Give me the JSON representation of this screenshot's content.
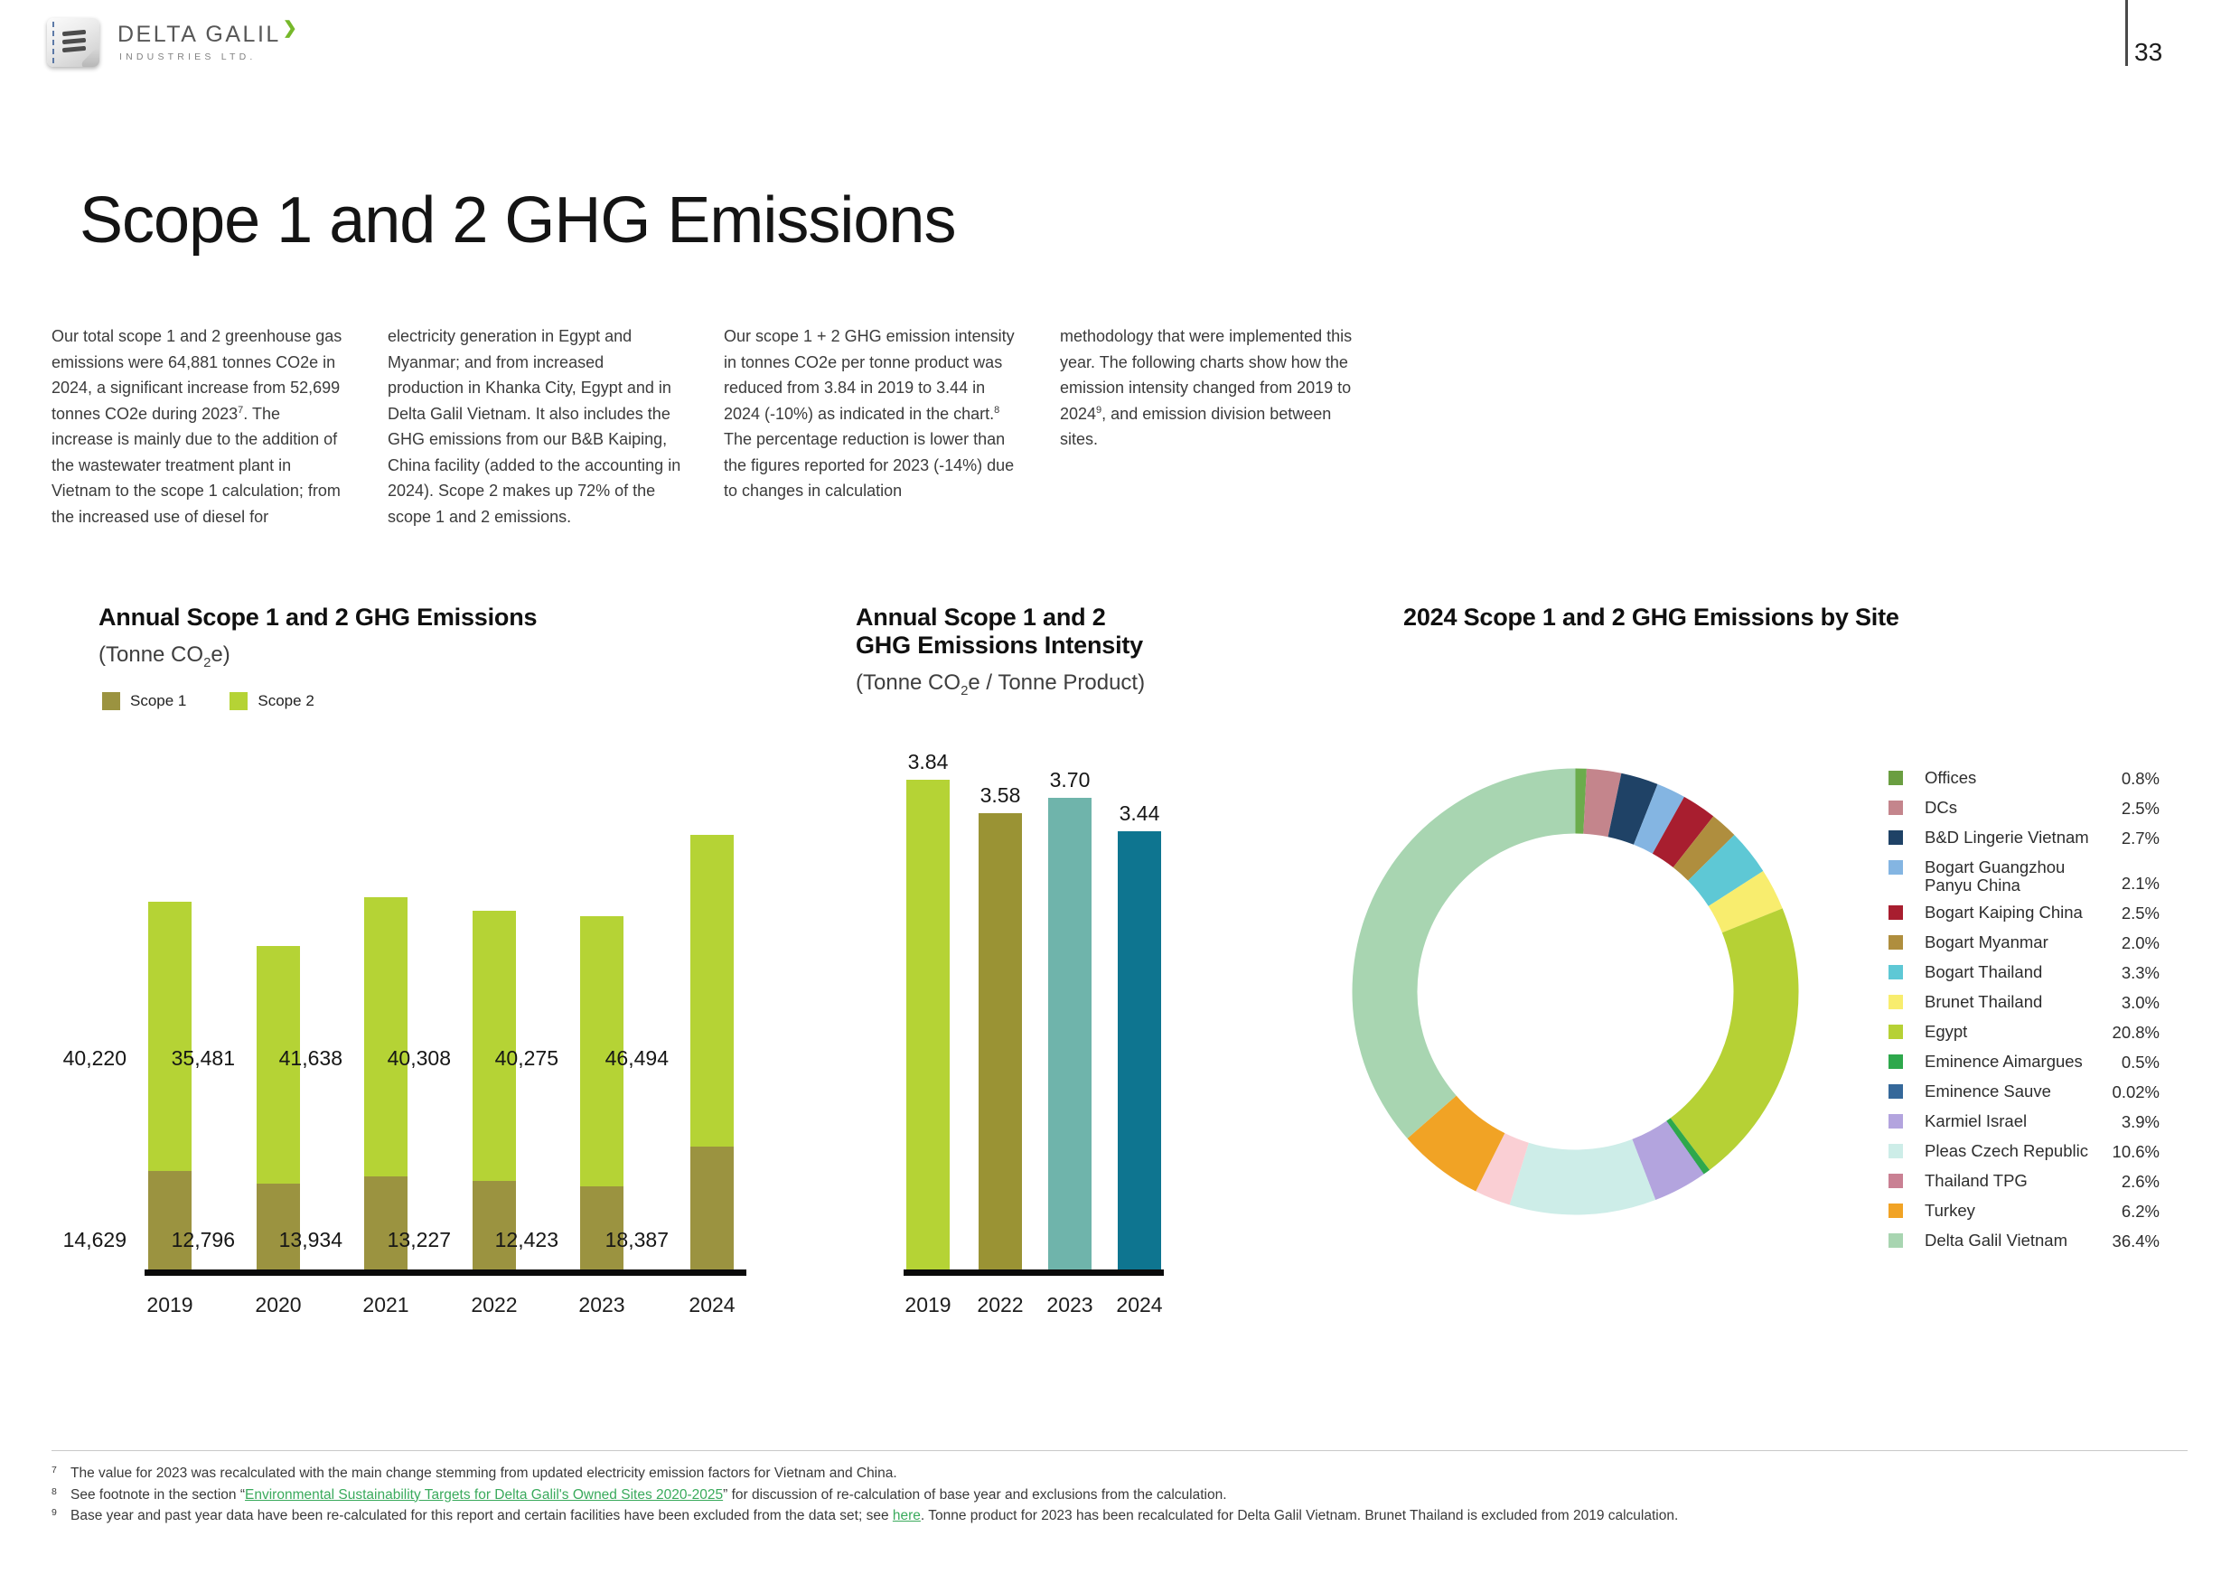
{
  "page_number": "33",
  "logo": {
    "brand": "DELTA GALIL",
    "subtitle": "INDUSTRIES LTD.",
    "arrow_color": "#76B82A"
  },
  "title": "Scope 1 and 2 GHG Emissions",
  "link_color": "#3AAA5C",
  "intro": {
    "columns": [
      [
        {
          "t": "Our total scope 1 and 2 greenhouse gas emissions were 64,881 tonnes CO2e in 2024, a significant increase from 52,699 tonnes CO2e during 2023"
        },
        {
          "t": "7",
          "sup": true
        },
        {
          "t": ". The increase is mainly due to the addition of the wastewater treatment plant in Vietnam to the scope 1 calculation; from the increased use of diesel for"
        }
      ],
      [
        {
          "t": "electricity generation in Egypt and Myanmar; and from increased production in Khanka City, Egypt and in Delta Galil Vietnam. It also includes the GHG emissions from our B&B Kaiping, China facility (added to the accounting in 2024). Scope 2 makes up 72% of the scope 1 and 2 emissions."
        }
      ],
      [
        {
          "t": "Our scope 1 + 2 GHG emission intensity in tonnes CO2e per tonne product was reduced from 3.84 in 2019 to 3.44 in 2024 (-10%) as indicated in the chart."
        },
        {
          "t": "8",
          "sup": true
        },
        {
          "t": " The percentage reduction is lower than the figures reported for 2023 (-14%) due to changes in calculation"
        }
      ],
      [
        {
          "t": "methodology that were implemented this year. The following charts show how the emission intensity changed from 2019 to 2024"
        },
        {
          "t": "9",
          "sup": true
        },
        {
          "t": ", and emission division between sites."
        }
      ]
    ]
  },
  "chart_data": [
    {
      "id": "annual_emissions",
      "type": "bar",
      "stacked": true,
      "title": "Annual Scope 1 and 2 GHG Emissions",
      "unit": {
        "pre": "(Tonne CO",
        "sub": "2",
        "post": "e)"
      },
      "categories": [
        "2019",
        "2020",
        "2021",
        "2022",
        "2023",
        "2024"
      ],
      "series": [
        {
          "name": "Scope 1",
          "color": "#9B9340",
          "values": [
            14629,
            12796,
            13934,
            13227,
            12423,
            18387
          ]
        },
        {
          "name": "Scope 2",
          "color": "#B5D335",
          "values": [
            40220,
            35481,
            41638,
            40308,
            40275,
            46494
          ]
        }
      ],
      "legend_position": "top-left",
      "grid": false,
      "ylim": [
        0,
        66000
      ]
    },
    {
      "id": "emissions_intensity",
      "type": "bar",
      "title_lines": [
        "Annual Scope 1 and 2",
        "GHG Emissions Intensity"
      ],
      "unit": {
        "pre": "(Tonne CO",
        "sub": "2",
        "post": "e / Tonne Product)"
      },
      "categories": [
        "2019",
        "2022",
        "2023",
        "2024"
      ],
      "values": [
        3.84,
        3.58,
        3.7,
        3.44
      ],
      "labels": [
        "3.84",
        "3.58",
        "3.70",
        "3.44"
      ],
      "colors": [
        "#B5D335",
        "#9A9334",
        "#6FB4AB",
        "#0E7590"
      ],
      "grid": false,
      "ylim": [
        0,
        4.0
      ]
    },
    {
      "id": "emissions_by_site_2024",
      "type": "pie",
      "donut": true,
      "title": "2024 Scope 1 and 2 GHG Emissions by Site",
      "legend_position": "right",
      "items": [
        {
          "label": "Offices",
          "value": 0.8,
          "display": "0.8%",
          "color": "#6BAC4C",
          "swatch": "#6A9E41"
        },
        {
          "label": "DCs",
          "value": 2.5,
          "display": "2.5%",
          "color": "#C4858C",
          "swatch": "#C4858C"
        },
        {
          "label": "B&D Lingerie Vietnam",
          "value": 2.7,
          "display": "2.7%",
          "color": "#1F4266",
          "swatch": "#1F4266"
        },
        {
          "label": "Bogart Guangzhou Panyu China",
          "value": 2.1,
          "display": "2.1%",
          "color": "#84B5E2",
          "swatch": "#84B5E2"
        },
        {
          "label": "Bogart Kaiping China",
          "value": 2.5,
          "display": "2.5%",
          "color": "#A81E2F",
          "swatch": "#A81E2F"
        },
        {
          "label": "Bogart Myanmar",
          "value": 2.0,
          "display": "2.0%",
          "color": "#AF8E3E",
          "swatch": "#AF8E3E"
        },
        {
          "label": "Bogart Thailand",
          "value": 3.3,
          "display": "3.3%",
          "color": "#5EC8D5",
          "swatch": "#5EC8D5"
        },
        {
          "label": "Brunet Thailand",
          "value": 3.0,
          "display": "3.0%",
          "color": "#F8ED6E",
          "swatch": "#F8ED6E"
        },
        {
          "label": "Egypt",
          "value": 20.8,
          "display": "20.8%",
          "color": "#B6D135",
          "swatch": "#B6D135"
        },
        {
          "label": "Eminence Aimargues",
          "value": 0.5,
          "display": "0.5%",
          "color": "#2EA84C",
          "swatch": "#2EA84C"
        },
        {
          "label": "Eminence Sauve",
          "value": 0.02,
          "display": "0.02%",
          "color": "#35689A",
          "swatch": "#35689A"
        },
        {
          "label": "Karmiel Israel",
          "value": 3.9,
          "display": "3.9%",
          "color": "#B3A4DE",
          "swatch": "#B3A4DE"
        },
        {
          "label": "Pleas Czech Republic",
          "value": 10.6,
          "display": "10.6%",
          "color": "#CDEDE8",
          "swatch": "#CDEDE8"
        },
        {
          "label": "Thailand TPG",
          "value": 2.6,
          "display": "2.6%",
          "color": "#FACFD4",
          "swatch": "#C98093"
        },
        {
          "label": "Turkey",
          "value": 6.2,
          "display": "6.2%",
          "color": "#F1A325",
          "swatch": "#F1A325"
        },
        {
          "label": "Delta Galil Vietnam",
          "value": 36.4,
          "display": "36.4%",
          "color": "#A8D5B1",
          "swatch": "#A8D5B1"
        }
      ]
    }
  ],
  "footnotes": [
    {
      "num": "7",
      "segments": [
        {
          "t": "The value for 2023 was recalculated with the main change stemming from updated electricity emission factors for Vietnam and China."
        }
      ]
    },
    {
      "num": "8",
      "segments": [
        {
          "t": "See footnote in the section “"
        },
        {
          "t": "Environmental Sustainability Targets for Delta Galil's Owned Sites 2020-2025",
          "link": true
        },
        {
          "t": "” for discussion of re-calculation of base year and exclusions from the calculation."
        }
      ]
    },
    {
      "num": "9",
      "segments": [
        {
          "t": "Base year and past year data have been re-calculated for this report and certain facilities have been excluded from the data set; see "
        },
        {
          "t": "here",
          "link": true
        },
        {
          "t": ". Tonne product for 2023 has been recalculated for Delta Galil Vietnam. Brunet Thailand is excluded from 2019 calculation."
        }
      ]
    }
  ]
}
